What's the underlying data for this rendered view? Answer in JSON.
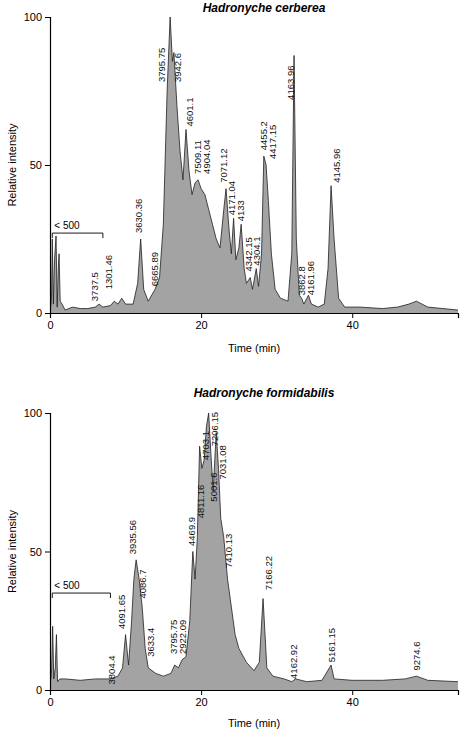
{
  "chart_data": [
    {
      "type": "area",
      "title": "Hadronyche cerberea",
      "x_label": "Time (min)",
      "y_label": "Relative intensity",
      "color": "#a3a3a3",
      "grid": false,
      "xlim": [
        0,
        54
      ],
      "xticks": [
        0,
        20,
        40
      ],
      "ylim": [
        0,
        100
      ],
      "yticks": [
        0,
        50,
        100
      ],
      "x": [
        0,
        0.2,
        0.3,
        0.45,
        0.6,
        0.8,
        0.95,
        1.1,
        1.2,
        1.35,
        1.6,
        2,
        3,
        4,
        5,
        6,
        6.5,
        7,
        8,
        8.5,
        9,
        9.5,
        10,
        11,
        11.6,
        12,
        12.4,
        13,
        13.9,
        14.5,
        15.0,
        15.5,
        15.9,
        16.2,
        16.4,
        16.8,
        17.2,
        17.6,
        18.0,
        18.4,
        18.8,
        19.2,
        19.6,
        20.0,
        20.5,
        21.0,
        21.5,
        22.0,
        22.5,
        23.0,
        23.3,
        23.7,
        24.0,
        24.3,
        24.6,
        25.0,
        25.3,
        25.7,
        26.0,
        26.5,
        26.8,
        27.3,
        27.6,
        28.0,
        28.3,
        28.6,
        28.9,
        29.3,
        29.8,
        30.5,
        31.5,
        32.0,
        32.3,
        32.6,
        33.0,
        33.3,
        33.6,
        34.2,
        34.6,
        35.5,
        36.3,
        36.8,
        37.2,
        37.6,
        38.2,
        39,
        41,
        44,
        46,
        47.5,
        48.5,
        50,
        52,
        54
      ],
      "values": [
        0,
        5,
        25,
        3,
        18,
        26,
        2,
        15,
        20,
        4,
        3,
        1,
        2,
        1.5,
        1.5,
        2,
        3,
        2,
        2.5,
        4,
        3,
        5,
        3,
        3,
        10,
        25,
        8,
        4,
        8,
        12,
        30,
        75,
        100,
        85,
        88,
        70,
        55,
        45,
        62,
        48,
        40,
        44,
        45,
        42,
        40,
        35,
        30,
        25,
        22,
        35,
        42,
        28,
        20,
        32,
        18,
        22,
        30,
        15,
        10,
        12,
        8,
        15,
        9,
        20,
        53,
        50,
        38,
        20,
        8,
        5,
        4,
        20,
        87,
        25,
        6,
        5,
        3,
        6,
        3,
        2,
        3,
        15,
        43,
        25,
        5,
        2,
        2,
        1.5,
        2,
        3,
        4,
        2,
        1.5,
        1
      ],
      "brackets": [
        {
          "text": "< 500",
          "x0": 0.3,
          "x1": 7,
          "y": 27
        }
      ],
      "annotations": [
        {
          "text": "3737.5",
          "x": 5.9,
          "y": 4
        },
        {
          "text": "1301.46",
          "x": 7.8,
          "y": 8
        },
        {
          "text": "3630.36",
          "x": 11.7,
          "y": 27
        },
        {
          "text": "6665.89",
          "x": 13.9,
          "y": 9
        },
        {
          "text": "3795.75",
          "x": 14.8,
          "y": 78
        },
        {
          "text": "3942.6",
          "x": 16.9,
          "y": 78
        },
        {
          "text": "4601.1",
          "x": 18.5,
          "y": 63
        },
        {
          "text": "7509.11",
          "x": 19.6,
          "y": 47
        },
        {
          "text": "4904.04",
          "x": 20.8,
          "y": 47
        },
        {
          "text": "7071.12",
          "x": 23.0,
          "y": 44
        },
        {
          "text": "4171.04",
          "x": 24.0,
          "y": 33
        },
        {
          "text": "4133",
          "x": 25.3,
          "y": 31
        },
        {
          "text": "4342.15",
          "x": 26.3,
          "y": 14
        },
        {
          "text": "4304.1",
          "x": 27.4,
          "y": 16
        },
        {
          "text": "4455.2",
          "x": 28.3,
          "y": 55
        },
        {
          "text": "4417.15",
          "x": 29.5,
          "y": 52
        },
        {
          "text": "4163.96",
          "x": 31.9,
          "y": 72
        },
        {
          "text": "3862.8",
          "x": 33.3,
          "y": 6
        },
        {
          "text": "4161.96",
          "x": 34.5,
          "y": 6
        },
        {
          "text": "4145.96",
          "x": 37.9,
          "y": 44
        }
      ]
    },
    {
      "type": "area",
      "title": "Hadronyche formidabilis",
      "x_label": "Time (min)",
      "y_label": "Relative intensity",
      "color": "#a3a3a3",
      "grid": false,
      "xlim": [
        0,
        54
      ],
      "xticks": [
        0,
        20,
        40
      ],
      "ylim": [
        0,
        100
      ],
      "yticks": [
        0,
        50,
        100
      ],
      "x": [
        0,
        0.2,
        0.35,
        0.5,
        0.7,
        0.85,
        1,
        1.3,
        2,
        4,
        6,
        8,
        9,
        9.6,
        10,
        10.4,
        10.8,
        11.1,
        11.4,
        11.8,
        12.2,
        12.6,
        13,
        14,
        15,
        16,
        16.5,
        17,
        17.5,
        18,
        18.5,
        18.9,
        19.2,
        19.5,
        19.8,
        20.1,
        20.4,
        20.7,
        21,
        21.3,
        21.6,
        22,
        22.3,
        22.6,
        23,
        23.5,
        24,
        24.5,
        25,
        26,
        27,
        27.7,
        28.2,
        28.7,
        29.5,
        31,
        32,
        32.5,
        34,
        36,
        37.2,
        37.6,
        40,
        44,
        47,
        48.5,
        50,
        54
      ],
      "values": [
        2,
        6,
        23,
        4,
        8,
        20,
        3,
        4,
        4,
        3.5,
        4,
        4,
        5,
        8,
        20,
        9,
        25,
        40,
        47,
        40,
        30,
        15,
        8,
        6,
        5,
        6,
        9,
        8,
        11,
        12,
        25,
        50,
        40,
        55,
        88,
        80,
        83,
        95,
        100,
        85,
        72,
        93,
        80,
        62,
        55,
        40,
        30,
        20,
        15,
        10,
        7,
        10,
        33,
        8,
        5,
        4,
        3,
        4,
        3,
        3.5,
        9,
        4,
        3.5,
        3.5,
        4,
        5,
        3.5,
        3
      ],
      "brackets": [
        {
          "text": "< 500",
          "x0": 0.3,
          "x1": 8,
          "y": 35
        }
      ],
      "annotations": [
        {
          "text": "3804.4",
          "x": 8.2,
          "y": 2
        },
        {
          "text": "4091.65",
          "x": 9.5,
          "y": 22
        },
        {
          "text": "3935.56",
          "x": 10.9,
          "y": 49
        },
        {
          "text": "4086.7",
          "x": 12.2,
          "y": 33
        },
        {
          "text": "3633.4",
          "x": 13.3,
          "y": 12
        },
        {
          "text": "3795.75",
          "x": 16.4,
          "y": 13
        },
        {
          "text": "2922.09",
          "x": 17.6,
          "y": 13
        },
        {
          "text": "4469.9",
          "x": 18.8,
          "y": 52
        },
        {
          "text": "4811.16",
          "x": 19.9,
          "y": 62
        },
        {
          "text": "4703.1",
          "x": 20.6,
          "y": 83
        },
        {
          "text": "5001.6",
          "x": 21.7,
          "y": 68
        },
        {
          "text": "7206.15",
          "x": 21.8,
          "y": 88
        },
        {
          "text": "7031.08",
          "x": 22.9,
          "y": 76
        },
        {
          "text": "7410.13",
          "x": 23.7,
          "y": 44
        },
        {
          "text": "7166.22",
          "x": 29.0,
          "y": 36
        },
        {
          "text": "4162.92",
          "x": 32.2,
          "y": 4
        },
        {
          "text": "5161.15",
          "x": 37.3,
          "y": 10
        },
        {
          "text": "9274.6",
          "x": 48.5,
          "y": 7
        }
      ]
    }
  ]
}
